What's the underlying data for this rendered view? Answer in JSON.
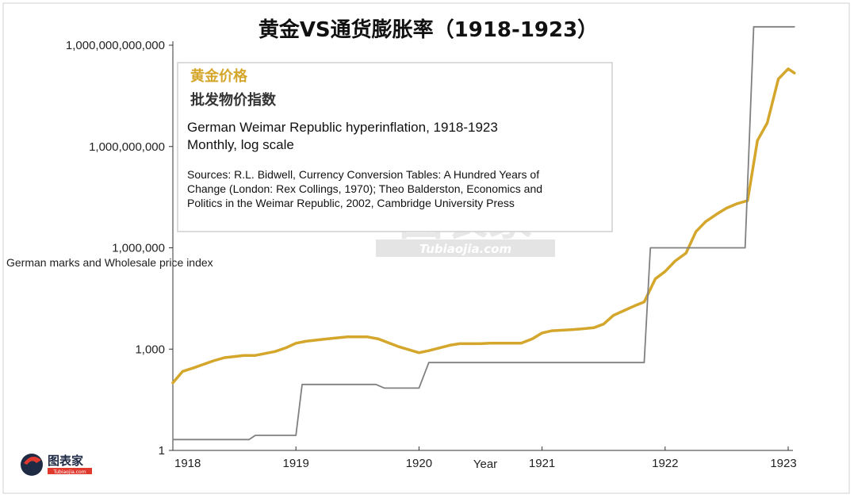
{
  "chart_data": {
    "type": "line",
    "title": "黄金VS通货膨胀率（1918-1923）",
    "ylabel": "German marks and Wholesale price index",
    "xlabel": "Year",
    "yscale": "log",
    "ylim": [
      1,
      1000000000000
    ],
    "xlim": [
      1918,
      1923
    ],
    "y_ticks": [
      1,
      1000,
      1000000,
      1000000000,
      1000000000000
    ],
    "y_tick_labels": [
      "1",
      "1,000",
      "1,000,000",
      "1,000,000,000",
      "1,000,000,000,000"
    ],
    "x_tick_labels": [
      "1918",
      "1919",
      "1920",
      "1921",
      "1922",
      "1923"
    ],
    "grid": false,
    "legend": [
      "黄金价格",
      "批发物价指数"
    ],
    "notes": [
      "German Weimar Republic hyperinflation, 1918-1923",
      "Monthly, log scale"
    ],
    "sources": [
      "Sources: R.L. Bidwell, Currency Conversion Tables: A Hundred Years of",
      "Change (London: Rex Collings, 1970); Theo Balderston, Economics and",
      "Politics in the Weimar Republic, 2002, Cambridge University Press"
    ],
    "series": [
      {
        "name": "黄金价格",
        "color": "#D4A72C",
        "x": [
          1918.0,
          1918.08,
          1918.17,
          1918.33,
          1918.42,
          1918.58,
          1918.67,
          1918.83,
          1918.92,
          1919.0,
          1919.08,
          1919.25,
          1919.42,
          1919.58,
          1919.67,
          1919.83,
          1920.0,
          1920.08,
          1920.25,
          1920.33,
          1920.5,
          1920.58,
          1920.67,
          1920.83,
          1920.92,
          1921.0,
          1921.08,
          1921.25,
          1921.33,
          1921.42,
          1921.5,
          1921.58,
          1921.67,
          1921.75,
          1921.83,
          1921.92,
          1922.0,
          1922.08,
          1922.17,
          1922.25,
          1922.33,
          1922.42,
          1922.5,
          1922.58,
          1922.67,
          1922.75,
          1922.83,
          1922.92,
          1923.0,
          1923.05
        ],
        "y": [
          100,
          220,
          280,
          450,
          560,
          650,
          650,
          850,
          1100,
          1500,
          1700,
          2000,
          2300,
          2300,
          2000,
          1200,
          780,
          900,
          1300,
          1450,
          1450,
          1500,
          1500,
          1500,
          2000,
          3000,
          3500,
          3800,
          4000,
          4300,
          5500,
          10000,
          14000,
          19000,
          25000,
          120000,
          200000,
          400000,
          700000,
          3000000,
          6000000,
          10000000,
          15000000,
          20000000,
          25000000,
          1500000000,
          5000000000,
          100000000000,
          200000000000,
          150000000000
        ]
      },
      {
        "name": "批发物价指数",
        "color": "#808080",
        "x": [
          1918.0,
          1918.62,
          1918.67,
          1918.97,
          1919.0,
          1919.05,
          1919.65,
          1919.72,
          1920.0,
          1920.08,
          1921.17,
          1921.25,
          1921.65,
          1921.72,
          1921.83,
          1921.88,
          1922.58,
          1922.65,
          1922.72,
          1923.05
        ],
        "y": [
          2.1,
          2.1,
          2.8,
          2.8,
          2.8,
          90,
          90,
          70,
          70,
          400,
          400,
          400,
          400,
          400,
          400,
          1000000,
          1000000,
          1000000,
          3500000000000,
          3500000000000
        ]
      }
    ]
  },
  "watermark": {
    "main": "图表家",
    "sub": "Tubiaojia.com",
    "logo_text": "图表家",
    "logo_sub": "Tubiaojia.com"
  }
}
